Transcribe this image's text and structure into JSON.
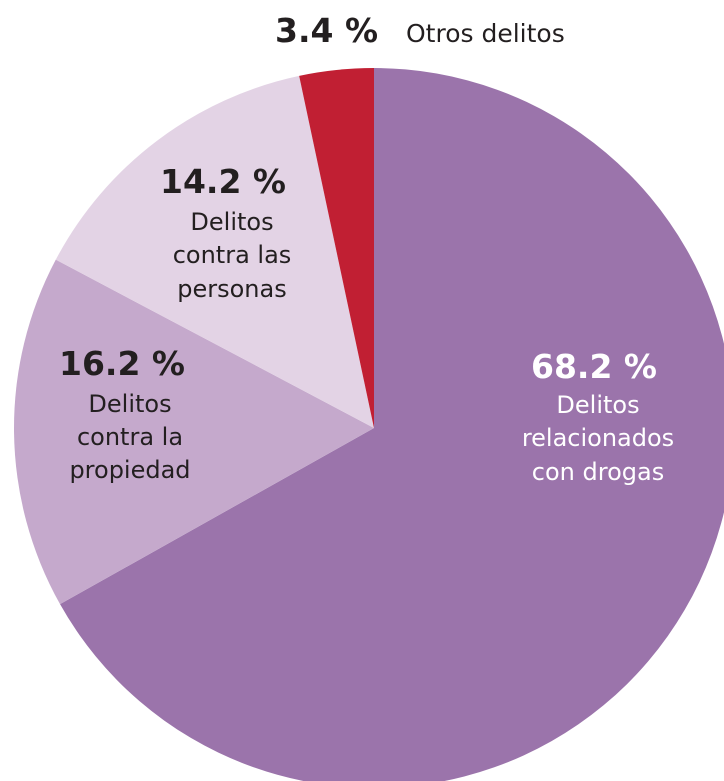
{
  "chart_data": {
    "type": "pie",
    "slices": [
      {
        "name": "Delitos relacionados con drogas",
        "label_lines": [
          "Delitos",
          "relacionados",
          "con drogas"
        ],
        "value": 68.2,
        "value_label": "68.2 %",
        "color": "#9b74ab",
        "text_color": "#ffffff"
      },
      {
        "name": "Delitos contra la propiedad",
        "label_lines": [
          "Delitos",
          "contra la",
          "propiedad"
        ],
        "value": 16.2,
        "value_label": "16.2 %",
        "color": "#c5a9cc",
        "text_color": "#231f20"
      },
      {
        "name": "Delitos contra las personas",
        "label_lines": [
          "Delitos",
          "contra las",
          "personas"
        ],
        "value": 14.2,
        "value_label": "14.2 %",
        "color": "#e3d3e5",
        "text_color": "#231f20"
      },
      {
        "name": "Otros delitos",
        "label_lines": [
          "Otros delitos"
        ],
        "value": 3.4,
        "value_label": "3.4 %",
        "color": "#c11f33",
        "text_color": "#231f20"
      }
    ]
  }
}
